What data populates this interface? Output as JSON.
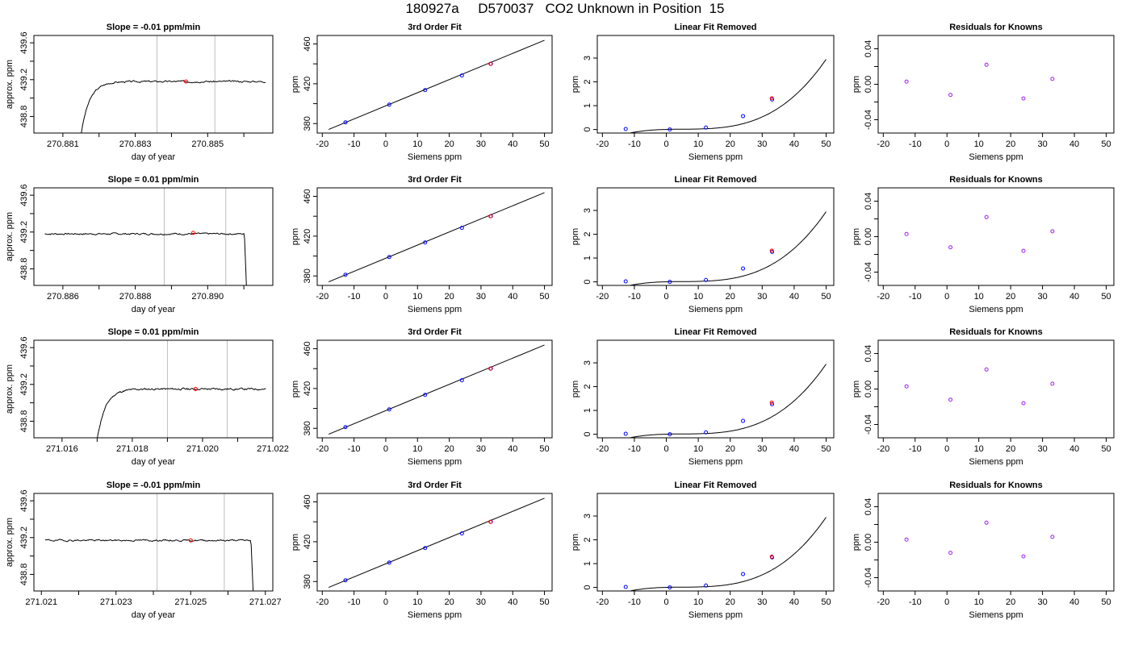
{
  "title": "180927a     D570037   CO2 Unknown in Position  15",
  "colors": {
    "trace": "#000000",
    "known": "#0000ff",
    "unknown": "#ff0000",
    "residual": "#a020f0",
    "marker_line": "#bebebe"
  },
  "chart_data": [
    {
      "type": "line",
      "panel": "trace",
      "row": 0,
      "title": "Slope =  -0.01  ppm/min",
      "xlabel": "day of year",
      "ylabel": "approx. ppm",
      "xlim": [
        270.8802,
        270.8868
      ],
      "ylim": [
        438.62,
        439.68
      ],
      "xticks": [
        270.881,
        270.882,
        270.883,
        270.884,
        270.885,
        270.886
      ],
      "xtick_labels": [
        "270.881",
        "",
        "270.883",
        "",
        "270.885",
        ""
      ],
      "yticks": [
        438.8,
        439.0,
        439.2,
        439.4,
        439.6
      ],
      "ytick_labels": [
        "438.8",
        "",
        "439.2",
        "",
        "439.6"
      ],
      "start": {
        "x": 270.8815,
        "y": 438.6
      },
      "rise_x": 270.8822,
      "plateau": 439.18,
      "end_x": 270.8866,
      "end_drop": false,
      "noise": 0.012,
      "seed": 3,
      "vlines": [
        270.8836,
        270.8852
      ],
      "marker": {
        "x": 270.8844,
        "y": 439.18
      }
    },
    {
      "type": "scatter",
      "panel": "fit",
      "row": 0,
      "title": "3rd Order Fit",
      "xlabel": "Siemens ppm",
      "ylabel": "ppm",
      "xlim": [
        -21.6,
        52.4
      ],
      "ylim": [
        370.5,
        468.5
      ],
      "xticks": [
        -20,
        -10,
        0,
        10,
        20,
        30,
        40,
        50
      ],
      "xtick_labels": [
        "-20",
        "-10",
        "0",
        "10",
        "20",
        "30",
        "40",
        "50"
      ],
      "yticks": [
        380,
        400,
        420,
        440,
        460
      ],
      "ytick_labels": [
        "380",
        "",
        "420",
        "",
        "460"
      ],
      "line": [
        [
          -18,
          374.1
        ],
        [
          50,
          463.7
        ]
      ],
      "knowns": [
        [
          -12.7,
          381.2
        ],
        [
          1.1,
          399.0
        ],
        [
          12.4,
          413.6
        ],
        [
          24.0,
          428.3
        ],
        [
          33.1,
          440.1
        ]
      ],
      "unknown": [
        33.0,
        440.0
      ]
    },
    {
      "type": "scatter",
      "panel": "lin",
      "row": 0,
      "title": "Linear Fit Removed",
      "xlabel": "Siemens ppm",
      "ylabel": "ppm",
      "xlim": [
        -21.6,
        52.4
      ],
      "ylim": [
        -0.15,
        3.95
      ],
      "xticks": [
        -20,
        -10,
        0,
        10,
        20,
        30,
        40,
        50
      ],
      "xtick_labels": [
        "-20",
        "-10",
        "0",
        "10",
        "20",
        "30",
        "40",
        "50"
      ],
      "yticks": [
        0,
        1,
        2,
        3
      ],
      "ytick_labels": [
        "0",
        "1",
        "2",
        "3"
      ],
      "curve": {
        "from": -18,
        "to": 50,
        "c": [
          0.002,
          0.0035,
          -0.0005,
          3.22e-05
        ]
      },
      "knowns": [
        [
          -12.7,
          0.02
        ],
        [
          1.1,
          0.0
        ],
        [
          12.4,
          0.08
        ],
        [
          24.0,
          0.56
        ],
        [
          33.1,
          1.26
        ]
      ],
      "unknown": [
        33.0,
        1.31
      ]
    },
    {
      "type": "scatter",
      "panel": "resid",
      "row": 0,
      "title": "Residuals for Knowns",
      "xlabel": "Siemens ppm",
      "ylabel": "ppm",
      "xlim": [
        -21.6,
        52.4
      ],
      "ylim": [
        -0.055,
        0.055
      ],
      "xticks": [
        -20,
        -10,
        0,
        10,
        20,
        30,
        40,
        50
      ],
      "xtick_labels": [
        "-20",
        "-10",
        "0",
        "10",
        "20",
        "30",
        "40",
        "50"
      ],
      "yticks": [
        -0.04,
        -0.02,
        0.0,
        0.02,
        0.04
      ],
      "ytick_labels": [
        "-0.04",
        "",
        "0.00",
        "",
        "0.04"
      ],
      "points": [
        [
          -12.7,
          0.003
        ],
        [
          1.1,
          -0.012
        ],
        [
          12.4,
          0.022
        ],
        [
          24.0,
          -0.016
        ],
        [
          33.1,
          0.006
        ]
      ]
    },
    {
      "type": "line",
      "panel": "trace",
      "row": 1,
      "title": "Slope =  0.01  ppm/min",
      "xlabel": "day of year",
      "ylabel": "approx. ppm",
      "xlim": [
        270.8852,
        270.8918
      ],
      "ylim": [
        438.62,
        439.68
      ],
      "xticks": [
        270.886,
        270.887,
        270.888,
        270.889,
        270.89,
        270.891
      ],
      "xtick_labels": [
        "270.886",
        "",
        "270.888",
        "",
        "270.890",
        ""
      ],
      "yticks": [
        438.8,
        439.0,
        439.2,
        439.4,
        439.6
      ],
      "ytick_labels": [
        "438.8",
        "",
        "439.2",
        "",
        "439.6"
      ],
      "start": {
        "x": 270.8855,
        "y": 439.17
      },
      "rise_x": 270.8855,
      "plateau": 439.18,
      "end_x": 270.891,
      "end_drop": true,
      "noise": 0.012,
      "seed": 7,
      "vlines": [
        270.8888,
        270.8905
      ],
      "marker": {
        "x": 270.8896,
        "y": 439.19
      }
    },
    {
      "type": "scatter",
      "panel": "fit",
      "row": 1,
      "title": "3rd Order Fit",
      "xlabel": "Siemens ppm",
      "ylabel": "ppm",
      "xlim": [
        -21.6,
        52.4
      ],
      "ylim": [
        370.5,
        468.5
      ],
      "xticks": [
        -20,
        -10,
        0,
        10,
        20,
        30,
        40,
        50
      ],
      "xtick_labels": [
        "-20",
        "-10",
        "0",
        "10",
        "20",
        "30",
        "40",
        "50"
      ],
      "yticks": [
        380,
        400,
        420,
        440,
        460
      ],
      "ytick_labels": [
        "380",
        "",
        "420",
        "",
        "460"
      ],
      "line": [
        [
          -18,
          374.1
        ],
        [
          50,
          463.7
        ]
      ],
      "knowns": [
        [
          -12.7,
          381.2
        ],
        [
          1.1,
          399.0
        ],
        [
          12.4,
          413.6
        ],
        [
          24.0,
          428.3
        ],
        [
          33.1,
          440.1
        ]
      ],
      "unknown": [
        33.0,
        440.0
      ]
    },
    {
      "type": "scatter",
      "panel": "lin",
      "row": 1,
      "title": "Linear Fit Removed",
      "xlabel": "Siemens ppm",
      "ylabel": "ppm",
      "xlim": [
        -21.6,
        52.4
      ],
      "ylim": [
        -0.15,
        3.95
      ],
      "xticks": [
        -20,
        -10,
        0,
        10,
        20,
        30,
        40,
        50
      ],
      "xtick_labels": [
        "-20",
        "-10",
        "0",
        "10",
        "20",
        "30",
        "40",
        "50"
      ],
      "yticks": [
        0,
        1,
        2,
        3
      ],
      "ytick_labels": [
        "0",
        "1",
        "2",
        "3"
      ],
      "curve": {
        "from": -18,
        "to": 50,
        "c": [
          0.002,
          0.0035,
          -0.0005,
          3.22e-05
        ]
      },
      "knowns": [
        [
          -12.7,
          0.02
        ],
        [
          1.1,
          0.0
        ],
        [
          12.4,
          0.08
        ],
        [
          24.0,
          0.56
        ],
        [
          33.1,
          1.26
        ]
      ],
      "unknown": [
        33.0,
        1.31
      ]
    },
    {
      "type": "scatter",
      "panel": "resid",
      "row": 1,
      "title": "Residuals for Knowns",
      "xlabel": "Siemens ppm",
      "ylabel": "ppm",
      "xlim": [
        -21.6,
        52.4
      ],
      "ylim": [
        -0.055,
        0.055
      ],
      "xticks": [
        -20,
        -10,
        0,
        10,
        20,
        30,
        40,
        50
      ],
      "xtick_labels": [
        "-20",
        "-10",
        "0",
        "10",
        "20",
        "30",
        "40",
        "50"
      ],
      "yticks": [
        -0.04,
        -0.02,
        0.0,
        0.02,
        0.04
      ],
      "ytick_labels": [
        "-0.04",
        "",
        "0.00",
        "",
        "0.04"
      ],
      "points": [
        [
          -12.7,
          0.003
        ],
        [
          1.1,
          -0.012
        ],
        [
          12.4,
          0.022
        ],
        [
          24.0,
          -0.016
        ],
        [
          33.1,
          0.006
        ]
      ]
    },
    {
      "type": "line",
      "panel": "trace",
      "row": 2,
      "title": "Slope =  0.01  ppm/min",
      "xlabel": "day of year",
      "ylabel": "approx. ppm",
      "xlim": [
        271.0152,
        271.022
      ],
      "ylim": [
        438.62,
        439.68
      ],
      "xticks": [
        271.016,
        271.017,
        271.018,
        271.019,
        271.02,
        271.021,
        271.022
      ],
      "xtick_labels": [
        "271.016",
        "",
        "271.018",
        "",
        "271.020",
        "",
        "271.022"
      ],
      "yticks": [
        438.8,
        439.0,
        439.2,
        439.4,
        439.6
      ],
      "ytick_labels": [
        "438.8",
        "",
        "439.2",
        "",
        "439.6"
      ],
      "start": {
        "x": 271.017,
        "y": 438.6
      },
      "rise_x": 271.0177,
      "plateau": 439.15,
      "end_x": 271.0218,
      "end_drop": false,
      "noise": 0.013,
      "seed": 11,
      "vlines": [
        271.019,
        271.0207
      ],
      "marker": {
        "x": 271.0198,
        "y": 439.15
      }
    },
    {
      "type": "scatter",
      "panel": "fit",
      "row": 2,
      "title": "3rd Order Fit",
      "xlabel": "Siemens ppm",
      "ylabel": "ppm",
      "xlim": [
        -21.6,
        52.4
      ],
      "ylim": [
        370.5,
        468.5
      ],
      "xticks": [
        -20,
        -10,
        0,
        10,
        20,
        30,
        40,
        50
      ],
      "xtick_labels": [
        "-20",
        "-10",
        "0",
        "10",
        "20",
        "30",
        "40",
        "50"
      ],
      "yticks": [
        380,
        400,
        420,
        440,
        460
      ],
      "ytick_labels": [
        "380",
        "",
        "420",
        "",
        "460"
      ],
      "line": [
        [
          -18,
          374.1
        ],
        [
          50,
          463.7
        ]
      ],
      "knowns": [
        [
          -12.7,
          381.2
        ],
        [
          1.1,
          399.0
        ],
        [
          12.4,
          413.6
        ],
        [
          24.0,
          428.3
        ],
        [
          33.1,
          440.1
        ]
      ],
      "unknown": [
        33.0,
        440.0
      ]
    },
    {
      "type": "scatter",
      "panel": "lin",
      "row": 2,
      "title": "Linear Fit Removed",
      "xlabel": "Siemens ppm",
      "ylabel": "ppm",
      "xlim": [
        -21.6,
        52.4
      ],
      "ylim": [
        -0.15,
        3.95
      ],
      "xticks": [
        -20,
        -10,
        0,
        10,
        20,
        30,
        40,
        50
      ],
      "xtick_labels": [
        "-20",
        "-10",
        "0",
        "10",
        "20",
        "30",
        "40",
        "50"
      ],
      "yticks": [
        0,
        1,
        2,
        3
      ],
      "ytick_labels": [
        "0",
        "1",
        "2",
        "3"
      ],
      "curve": {
        "from": -18,
        "to": 50,
        "c": [
          0.002,
          0.0035,
          -0.0005,
          3.22e-05
        ]
      },
      "knowns": [
        [
          -12.7,
          0.02
        ],
        [
          1.1,
          0.0
        ],
        [
          12.4,
          0.08
        ],
        [
          24.0,
          0.56
        ],
        [
          33.1,
          1.26
        ]
      ],
      "unknown": [
        33.0,
        1.33
      ]
    },
    {
      "type": "scatter",
      "panel": "resid",
      "row": 2,
      "title": "Residuals for Knowns",
      "xlabel": "Siemens ppm",
      "ylabel": "ppm",
      "xlim": [
        -21.6,
        52.4
      ],
      "ylim": [
        -0.055,
        0.055
      ],
      "xticks": [
        -20,
        -10,
        0,
        10,
        20,
        30,
        40,
        50
      ],
      "xtick_labels": [
        "-20",
        "-10",
        "0",
        "10",
        "20",
        "30",
        "40",
        "50"
      ],
      "yticks": [
        -0.04,
        -0.02,
        0.0,
        0.02,
        0.04
      ],
      "ytick_labels": [
        "-0.04",
        "",
        "0.00",
        "",
        "0.04"
      ],
      "points": [
        [
          -12.7,
          0.003
        ],
        [
          1.1,
          -0.012
        ],
        [
          12.4,
          0.022
        ],
        [
          24.0,
          -0.016
        ],
        [
          33.1,
          0.006
        ]
      ]
    },
    {
      "type": "line",
      "panel": "trace",
      "row": 3,
      "title": "Slope =  -0.01  ppm/min",
      "xlabel": "day of year",
      "ylabel": "approx. ppm",
      "xlim": [
        271.0208,
        271.0272
      ],
      "ylim": [
        438.62,
        439.68
      ],
      "xticks": [
        271.021,
        271.022,
        271.023,
        271.024,
        271.025,
        271.026,
        271.027
      ],
      "xtick_labels": [
        "271.021",
        "",
        "271.023",
        "",
        "271.025",
        "",
        "271.027"
      ],
      "yticks": [
        438.8,
        439.0,
        439.2,
        439.4,
        439.6
      ],
      "ytick_labels": [
        "438.8",
        "",
        "439.2",
        "",
        "439.6"
      ],
      "start": {
        "x": 271.0211,
        "y": 439.17
      },
      "rise_x": 271.0211,
      "plateau": 439.17,
      "end_x": 271.0266,
      "end_drop": true,
      "noise": 0.012,
      "seed": 19,
      "vlines": [
        271.0241,
        271.0259
      ],
      "marker": {
        "x": 271.025,
        "y": 439.17
      }
    },
    {
      "type": "scatter",
      "panel": "fit",
      "row": 3,
      "title": "3rd Order Fit",
      "xlabel": "Siemens ppm",
      "ylabel": "ppm",
      "xlim": [
        -21.6,
        52.4
      ],
      "ylim": [
        370.5,
        468.5
      ],
      "xticks": [
        -20,
        -10,
        0,
        10,
        20,
        30,
        40,
        50
      ],
      "xtick_labels": [
        "-20",
        "-10",
        "0",
        "10",
        "20",
        "30",
        "40",
        "50"
      ],
      "yticks": [
        380,
        400,
        420,
        440,
        460
      ],
      "ytick_labels": [
        "380",
        "",
        "420",
        "",
        "460"
      ],
      "line": [
        [
          -18,
          374.1
        ],
        [
          50,
          463.7
        ]
      ],
      "knowns": [
        [
          -12.7,
          381.2
        ],
        [
          1.1,
          399.0
        ],
        [
          12.4,
          413.6
        ],
        [
          24.0,
          428.3
        ],
        [
          33.1,
          440.1
        ]
      ],
      "unknown": [
        33.0,
        440.0
      ]
    },
    {
      "type": "scatter",
      "panel": "lin",
      "row": 3,
      "title": "Linear Fit Removed",
      "xlabel": "Siemens ppm",
      "ylabel": "ppm",
      "xlim": [
        -21.6,
        52.4
      ],
      "ylim": [
        -0.15,
        3.95
      ],
      "xticks": [
        -20,
        -10,
        0,
        10,
        20,
        30,
        40,
        50
      ],
      "xtick_labels": [
        "-20",
        "-10",
        "0",
        "10",
        "20",
        "30",
        "40",
        "50"
      ],
      "yticks": [
        0,
        1,
        2,
        3
      ],
      "ytick_labels": [
        "0",
        "1",
        "2",
        "3"
      ],
      "curve": {
        "from": -18,
        "to": 50,
        "c": [
          0.002,
          0.0035,
          -0.0005,
          3.22e-05
        ]
      },
      "knowns": [
        [
          -12.7,
          0.02
        ],
        [
          1.1,
          0.0
        ],
        [
          12.4,
          0.08
        ],
        [
          24.0,
          0.56
        ],
        [
          33.1,
          1.26
        ]
      ],
      "unknown": [
        33.0,
        1.29
      ]
    },
    {
      "type": "scatter",
      "panel": "resid",
      "row": 3,
      "title": "Residuals for Knowns",
      "xlabel": "Siemens ppm",
      "ylabel": "ppm",
      "xlim": [
        -21.6,
        52.4
      ],
      "ylim": [
        -0.055,
        0.055
      ],
      "xticks": [
        -20,
        -10,
        0,
        10,
        20,
        30,
        40,
        50
      ],
      "xtick_labels": [
        "-20",
        "-10",
        "0",
        "10",
        "20",
        "30",
        "40",
        "50"
      ],
      "yticks": [
        -0.04,
        -0.02,
        0.0,
        0.02,
        0.04
      ],
      "ytick_labels": [
        "-0.04",
        "",
        "0.00",
        "",
        "0.04"
      ],
      "points": [
        [
          -12.7,
          0.003
        ],
        [
          1.1,
          -0.012
        ],
        [
          12.4,
          0.022
        ],
        [
          24.0,
          -0.016
        ],
        [
          33.1,
          0.006
        ]
      ]
    }
  ]
}
